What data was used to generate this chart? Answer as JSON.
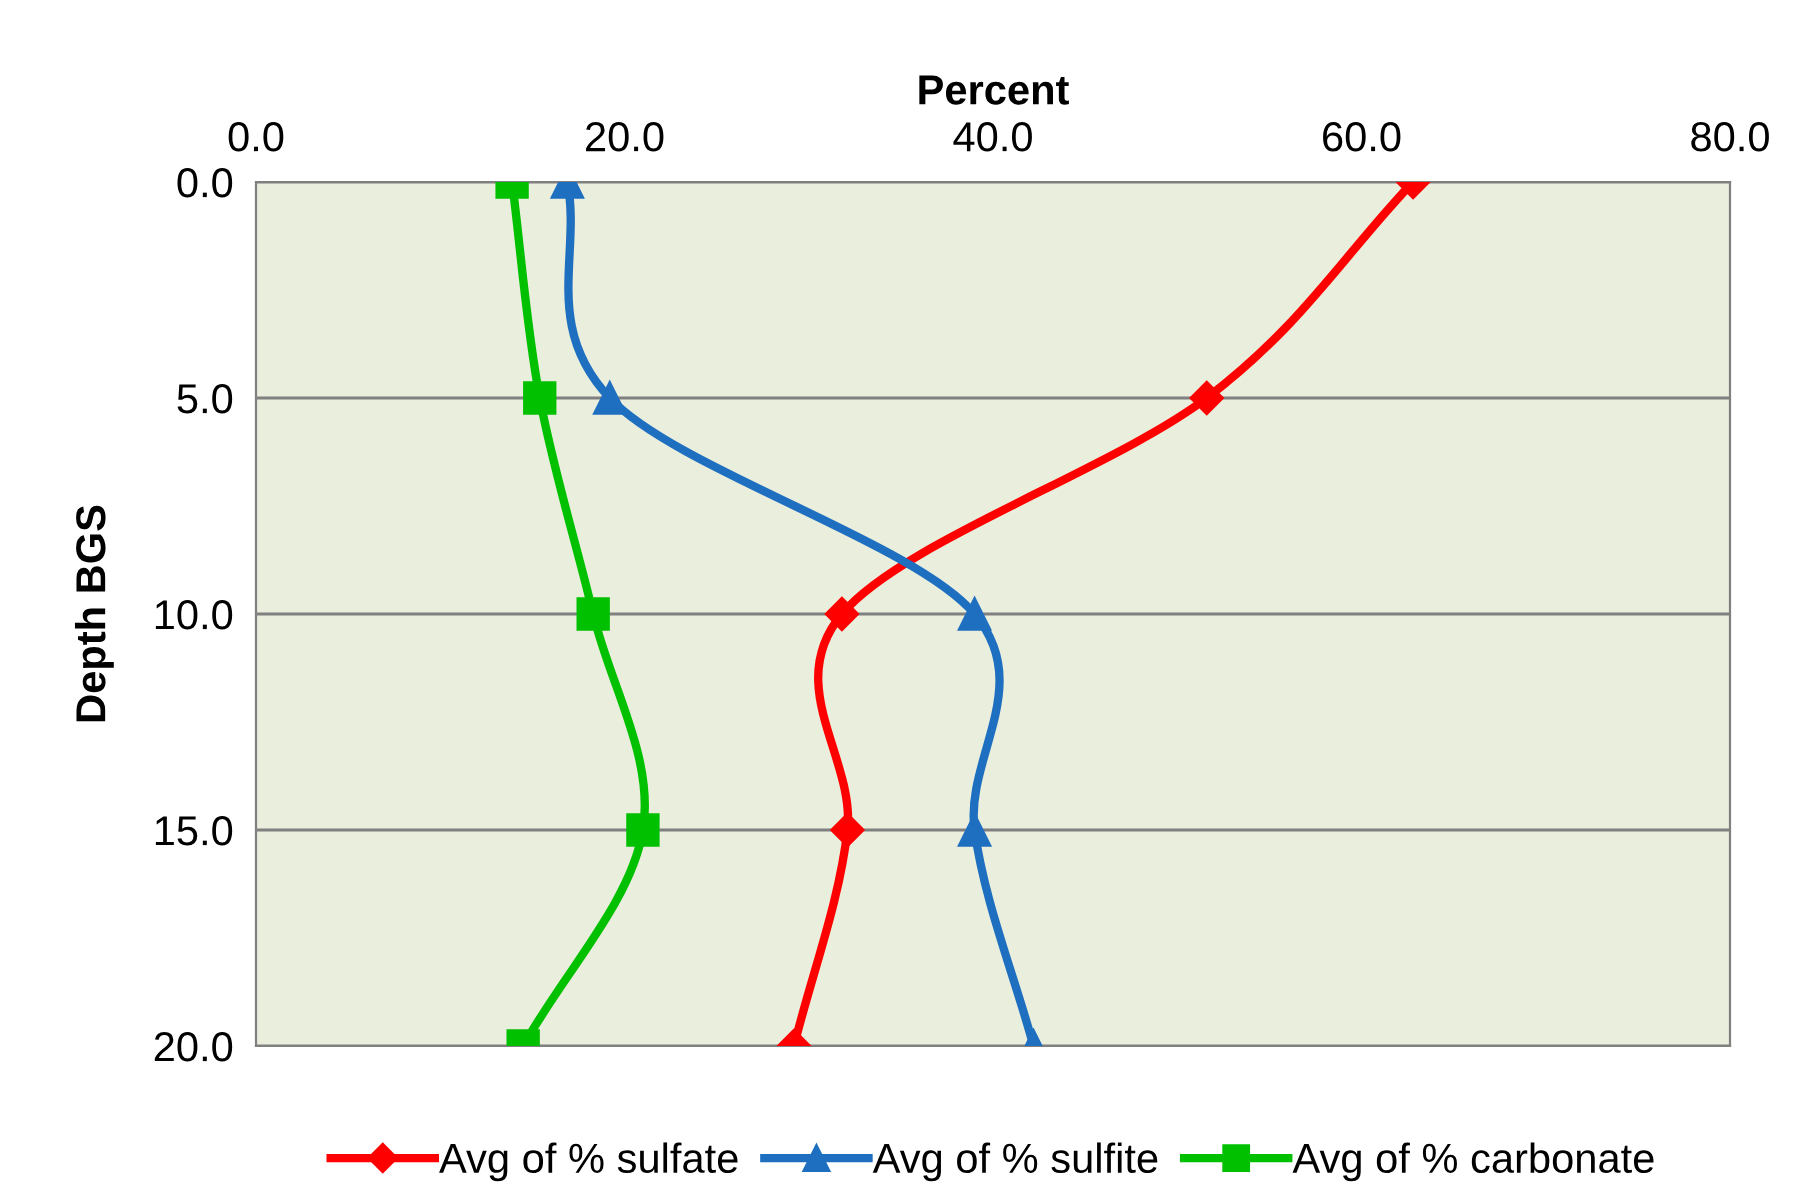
{
  "chart_data": {
    "type": "line",
    "xlabel": "Percent",
    "ylabel": "Depth BGS",
    "xlim": [
      0,
      80
    ],
    "ylim": [
      20,
      0
    ],
    "xticks": [
      {
        "value": 0,
        "label": "0.0"
      },
      {
        "value": 20,
        "label": "20.0"
      },
      {
        "value": 40,
        "label": "40.0"
      },
      {
        "value": 60,
        "label": "60.0"
      },
      {
        "value": 80,
        "label": "80.0"
      }
    ],
    "yticks": [
      {
        "value": 0,
        "label": "0.0"
      },
      {
        "value": 5,
        "label": "5.0"
      },
      {
        "value": 10,
        "label": "10.0"
      },
      {
        "value": 15,
        "label": "15.0"
      },
      {
        "value": 20,
        "label": "20.0"
      }
    ],
    "grid": "y",
    "legend": "bottom",
    "line_style": "solid",
    "series": [
      {
        "name": "Avg of % sulfate",
        "color": "#ff0000",
        "marker": "diamond",
        "x": [
          62.8,
          51.6,
          31.8,
          32.1,
          29.2
        ],
        "values": [
          0,
          5,
          10,
          15,
          20
        ]
      },
      {
        "name": "Avg of % sulfite",
        "color": "#1f6fc0",
        "marker": "triangle",
        "x": [
          16.9,
          19.2,
          39.0,
          39.0,
          42.2
        ],
        "values": [
          0,
          5,
          10,
          15,
          20
        ]
      },
      {
        "name": "Avg of % carbonate",
        "color": "#00c000",
        "marker": "square",
        "x": [
          13.9,
          15.4,
          18.3,
          21.0,
          14.5
        ],
        "values": [
          0,
          5,
          10,
          15,
          20
        ]
      }
    ]
  }
}
